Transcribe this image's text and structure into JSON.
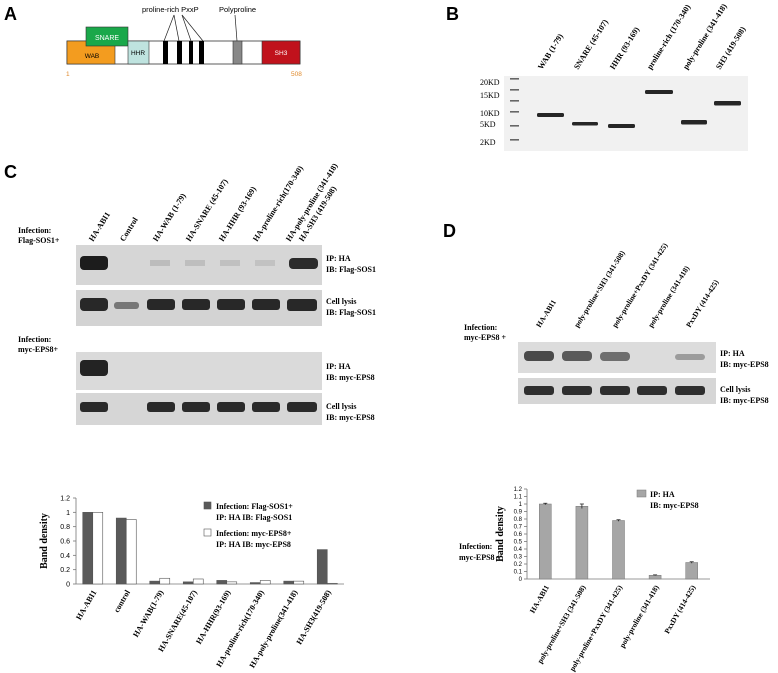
{
  "panel_letters": {
    "a": "A",
    "b": "B",
    "c": "C",
    "d": "D"
  },
  "panel_a": {
    "proline_label": "proline-rich PxxP",
    "polyproline_label": "Polyproline",
    "snare": "SNARE",
    "wab": "WAB",
    "hhr": "HHR",
    "sh3": "SH3",
    "start": "1",
    "end": "508",
    "colors": {
      "snare": "#1aa84a",
      "wab": "#f39c1f",
      "hhr": "#bfe3df",
      "sh3": "#c0121c",
      "poly": "#888888",
      "index": "#e08a2c"
    }
  },
  "panel_b": {
    "lanes": [
      "WAB (1-79)",
      "SNARE (45-107)",
      "HHR (93-169)",
      "proline-rich (170-340)",
      "poly-proline (341-418)",
      "SH3 (419-508)"
    ],
    "markers": [
      "20KD",
      "15KD",
      "10KD",
      "5KD",
      "2KD"
    ]
  },
  "panel_c": {
    "lanes": [
      "HA-ABI1",
      "Control",
      "HA-WAB (1-79)",
      "HA-SNARE (45-107)",
      "HA-HHR (93-169)",
      "HA-proline-rich(170-340)",
      "HA-poly-proline (341-418)",
      "HA-SH3 (419-508)"
    ],
    "infection1": [
      "Infection:",
      "Flag-SOS1+"
    ],
    "infection2": [
      "Infection:",
      "myc-EPS8+"
    ],
    "blot_labels": [
      [
        "IP: HA",
        "IB: Flag-SOS1"
      ],
      [
        "Cell lysis",
        "IB: Flag-SOS1"
      ],
      [
        "IP: HA",
        "IB: myc-EPS8"
      ],
      [
        "Cell lysis",
        "IB: myc-EPS8"
      ]
    ]
  },
  "panel_d": {
    "lanes": [
      "HA-ABI1",
      "poly-proline+SH3 (341-508)",
      "poly-proline+PxxDY (341-425)",
      "poly-proline (341-418)",
      "PxxDY (414-425)"
    ],
    "infection": [
      "Infection:",
      "myc-EPS8 +"
    ],
    "blot_labels": [
      [
        "IP: HA",
        "IB: myc-EPS8"
      ],
      [
        "Cell lysis",
        "IB: myc-EPS8"
      ]
    ],
    "chart_infection": [
      "Infection:",
      "myc-EPS8 +"
    ]
  },
  "chart_data": [
    {
      "type": "bar",
      "ylabel": "Band density",
      "ylim": [
        0,
        1.2
      ],
      "yticks": [
        "0",
        "0.2",
        "0.4",
        "0.6",
        "0.8",
        "1",
        "1.2"
      ],
      "categories": [
        "HA-ABI1",
        "control",
        "HA-WAB(1-79)",
        "HA-SNARE(45-107)",
        "HA-HHR(93-169)",
        "HA-proline-rich(170-340)",
        "HA-poly-proline(341-418)",
        "HA-SH3(419-508)"
      ],
      "legend_lines": [
        [
          "Infection: Flag-SOS1+",
          "IP: HA    IB: Flag-SOS1"
        ],
        [
          "Infection: myc-EPS8+",
          "IP: HA    IB: myc-EPS8"
        ]
      ],
      "series": [
        {
          "values": [
            1.0,
            0.92,
            0.04,
            0.03,
            0.05,
            0.02,
            0.04,
            0.48
          ],
          "color": "#5a5a5a"
        },
        {
          "values": [
            1.0,
            0.9,
            0.08,
            0.07,
            0.03,
            0.05,
            0.04,
            0.01
          ],
          "color": "#ffffff"
        }
      ]
    },
    {
      "type": "bar",
      "ylabel": "Band density",
      "ylim": [
        0,
        1.2
      ],
      "yticks": [
        "0",
        "0.1",
        "0.2",
        "0.3",
        "0.4",
        "0.5",
        "0.6",
        "0.7",
        "0.8",
        "0.9",
        "1",
        "1.1",
        "1.2"
      ],
      "categories": [
        "HA-ABI1",
        "poly-proline+SH3 (341-508)",
        "poly-proline+PxxDY (341-425)",
        "poly-proline (341-418)",
        "PxxDY (414-425)"
      ],
      "legend_lines": [
        "IP: HA",
        "IB: myc-EPS8"
      ],
      "series": [
        {
          "values": [
            1.0,
            0.97,
            0.78,
            0.05,
            0.22
          ],
          "errors": [
            0.01,
            0.03,
            0.01,
            0.005,
            0.01
          ],
          "color": "#a6a6a6"
        }
      ]
    }
  ]
}
